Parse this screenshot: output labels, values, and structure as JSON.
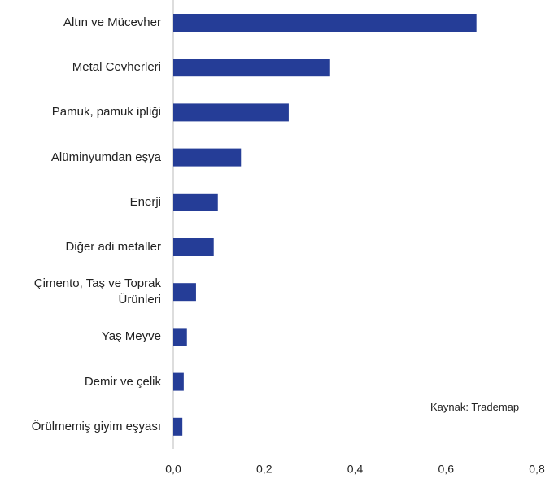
{
  "chart_data": {
    "type": "barh",
    "categories": [
      "Altın ve Mücevher",
      "Metal Cevherleri",
      "Pamuk, pamuk ipliği",
      "Alüminyumdan eşya",
      "Enerji",
      "Diğer adi metaller",
      "Çimento, Taş ve Toprak Ürünleri",
      "Yaş Meyve",
      "Demir ve çelik",
      "Örülmemiş giyim eşyası"
    ],
    "values": [
      0.667,
      0.345,
      0.254,
      0.149,
      0.098,
      0.089,
      0.05,
      0.03,
      0.023,
      0.02
    ],
    "color": "#253d97",
    "xlim": [
      0,
      0.8
    ],
    "xticks": [
      {
        "value": 0,
        "label": "0,0"
      },
      {
        "value": 0.2,
        "label": "0,2"
      },
      {
        "value": 0.4,
        "label": "0,4"
      },
      {
        "value": 0.6,
        "label": "0,6"
      },
      {
        "value": 0.8,
        "label": "0,8"
      }
    ],
    "annotation": "Kaynak: Trademap"
  }
}
